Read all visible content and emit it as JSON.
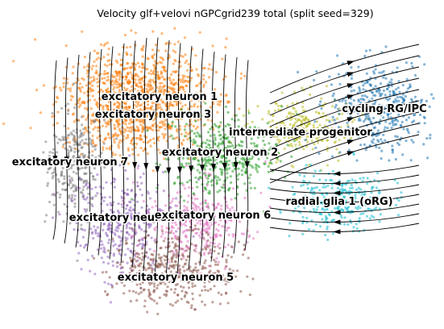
{
  "chart_data": {
    "type": "scatter",
    "subtype": "umap-embedding-with-velocity-streamlines",
    "title": "Velocity glf+velovi nGPCgrid239 total (split seed=329)",
    "xlabel": "",
    "ylabel": "",
    "axes_visible": false,
    "grid": false,
    "legend": "on data",
    "clusters": [
      {
        "name": "excitatory neuron 1",
        "color": "#ff7f0e"
      },
      {
        "name": "excitatory neuron 3",
        "color": "#ff7f0e"
      },
      {
        "name": "intermediate progenitor",
        "color": "#bcbd22"
      },
      {
        "name": "cycling RG/IPC",
        "color": "#1f77b4"
      },
      {
        "name": "excitatory neuron 2",
        "color": "#2ca02c"
      },
      {
        "name": "excitatory neuron 7",
        "color": "#7f7f7f"
      },
      {
        "name": "radial glia 1 (oRG)",
        "color": "#17becf"
      },
      {
        "name": "excitatory neuron 4",
        "color": "#9467bd"
      },
      {
        "name": "excitatory neuron 6",
        "color": "#e377c2"
      },
      {
        "name": "excitatory neuron 5",
        "color": "#8c564b"
      }
    ]
  }
}
